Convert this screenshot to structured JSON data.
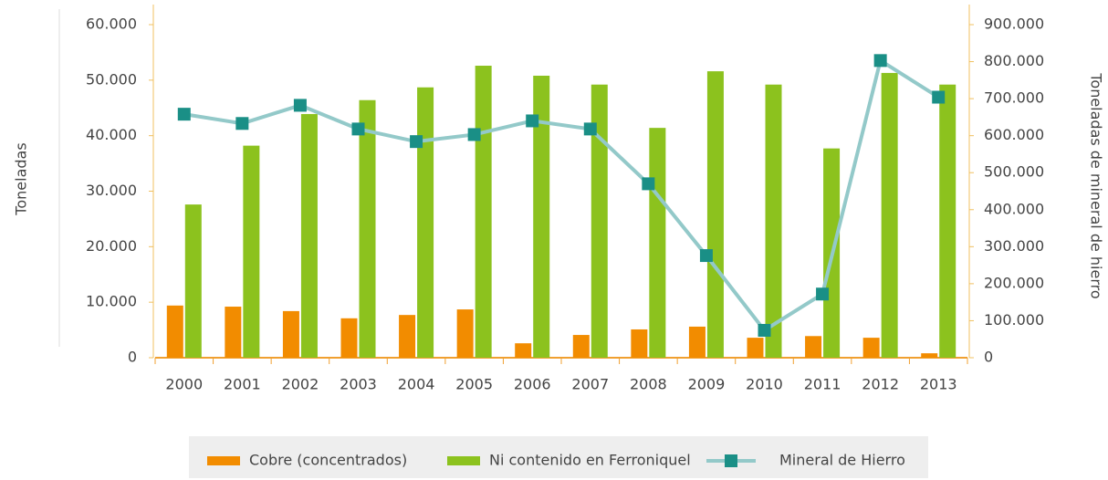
{
  "chart_data": {
    "type": "bar-line",
    "ylabel": "Toneladas",
    "y2label": "Toneladas de mineral de hierro",
    "categories": [
      "2000",
      "2001",
      "2002",
      "2003",
      "2004",
      "2005",
      "2006",
      "2007",
      "2008",
      "2009",
      "2010",
      "2011",
      "2012",
      "2013"
    ],
    "series": [
      {
        "name": "Cobre (concentrados)",
        "type": "bar",
        "color": "#f28c00",
        "values": [
          9400,
          9200,
          8400,
          7100,
          7700,
          8700,
          2600,
          4100,
          5100,
          5600,
          3600,
          3900,
          3600,
          800
        ]
      },
      {
        "name": "Ni contenido en Ferroniquel",
        "type": "bar",
        "color": "#8cc21e",
        "values": [
          27600,
          38200,
          43900,
          46400,
          48700,
          52600,
          50800,
          49200,
          41400,
          51600,
          49200,
          37700,
          51300,
          49200
        ]
      },
      {
        "name": "Mineral de Hierro",
        "type": "line",
        "axis": "y2",
        "color": "#93c9c9",
        "marker_color": "#1a8f86",
        "values": [
          658000,
          633000,
          682000,
          618000,
          584000,
          603000,
          640000,
          618000,
          470000,
          276000,
          74000,
          172000,
          803000,
          704000
        ]
      }
    ],
    "ylim": [
      0,
      60000
    ],
    "yticks": [
      0,
      {
        "value": 10000,
        "label": "10.000"
      },
      {
        "value": 20000,
        "label": "20.000"
      },
      {
        "value": 30000,
        "label": "30.000"
      },
      {
        "value": 40000,
        "label": "40.000"
      },
      {
        "value": 50000,
        "label": "50.000"
      },
      {
        "value": 60000,
        "label": "60.000"
      }
    ],
    "y2lim": [
      0,
      900000
    ],
    "y2ticks": [
      0,
      {
        "value": 100000,
        "label": "100.000"
      },
      {
        "value": 200000,
        "label": "200.000"
      },
      {
        "value": 300000,
        "label": "300.000"
      },
      {
        "value": 400000,
        "label": "400.000"
      },
      {
        "value": 500000,
        "label": "500.000"
      },
      {
        "value": 600000,
        "label": "600.000"
      },
      {
        "value": 700000,
        "label": "700.000"
      },
      {
        "value": 800000,
        "label": "800.000"
      },
      {
        "value": 900000,
        "label": "900.000"
      }
    ],
    "legend": "bottom"
  }
}
